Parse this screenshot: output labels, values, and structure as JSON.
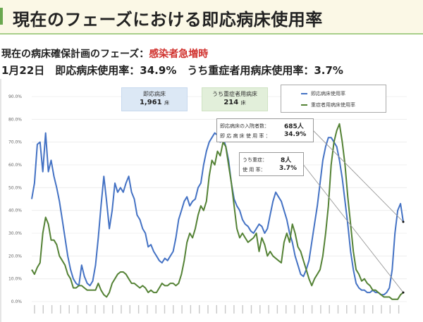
{
  "header": {
    "title": "現在のフェーズにおける即応病床使用率"
  },
  "phase": {
    "label": "現在の病床確保計画のフェーズ：",
    "value": "感染者急増時"
  },
  "rates": {
    "text": "1月22日　即応病床使用率：34.9%　うち重症者用病床使用率：3.7%"
  },
  "info_boxes": {
    "beds": {
      "title": "即応病床",
      "value": "1,961",
      "unit": "床"
    },
    "severe_beds": {
      "title": "うち重症者用病床",
      "value": "214",
      "unit": "床"
    }
  },
  "callouts": {
    "main": {
      "row1_label": "即応病床の入院者数：",
      "row1_value": "685人",
      "row2_label": "即 応 病 床 使 用 率 ：",
      "row2_value": "34.9%"
    },
    "severe": {
      "row1_label": "うち重症：",
      "row1_value": "8人",
      "row2_label": "使 用 率：",
      "row2_value": "3.7%"
    }
  },
  "colors": {
    "blue": "#4472c4",
    "green": "#548235",
    "accent_red": "#d0312d"
  },
  "chart_data": {
    "type": "line",
    "title": "",
    "xlabel": "",
    "ylabel": "",
    "ylim": [
      0,
      90
    ],
    "y_ticks": [
      "0.0%",
      "10.0%",
      "20.0%",
      "30.0%",
      "40.0%",
      "50.0%",
      "60.0%",
      "70.0%",
      "80.0%",
      "90.0%"
    ],
    "grid": true,
    "legend": {
      "position": "top-right",
      "entries": [
        "即応病床使用率",
        "重症者用病床使用率"
      ]
    },
    "x_note": "date ticks (rotated, unreadable)",
    "series": [
      {
        "name": "即応病床使用率",
        "color": "#4472c4",
        "values": [
          45,
          52,
          69,
          70,
          57,
          74,
          57,
          62,
          55,
          50,
          44,
          36,
          28,
          20,
          14,
          10,
          8,
          7,
          16,
          11,
          8,
          7,
          9,
          16,
          28,
          42,
          55,
          44,
          32,
          40,
          52,
          48,
          50,
          48,
          52,
          55,
          48,
          45,
          38,
          36,
          32,
          30,
          24,
          25,
          22,
          20,
          18,
          17,
          19,
          18,
          20,
          22,
          28,
          36,
          40,
          44,
          46,
          42,
          44,
          45,
          50,
          52,
          60,
          66,
          70,
          72,
          74,
          73,
          70,
          72,
          68,
          62,
          52,
          45,
          42,
          40,
          36,
          34,
          33,
          31,
          30,
          32,
          34,
          33,
          30,
          32,
          38,
          44,
          48,
          46,
          44,
          40,
          36,
          30,
          26,
          20,
          16,
          12,
          11,
          14,
          18,
          26,
          34,
          42,
          52,
          62,
          68,
          72,
          72,
          70,
          68,
          62,
          54,
          44,
          34,
          22,
          14,
          8,
          6,
          5,
          5,
          4,
          4,
          5,
          4,
          4,
          3,
          3,
          4,
          6,
          14,
          30,
          40,
          43,
          35
        ]
      },
      {
        "name": "重症者用病床使用率",
        "color": "#548235",
        "values": [
          14,
          12,
          15,
          17,
          30,
          37,
          34,
          27,
          27,
          25,
          20,
          18,
          16,
          12,
          10,
          6,
          6,
          7,
          7,
          6,
          5,
          5,
          5,
          5,
          8,
          5,
          3,
          2,
          4,
          8,
          10,
          12,
          13,
          13,
          12,
          10,
          8,
          8,
          7,
          6,
          7,
          6,
          4,
          5,
          4,
          4,
          6,
          8,
          7,
          7,
          8,
          8,
          7,
          8,
          12,
          18,
          26,
          30,
          28,
          32,
          38,
          42,
          40,
          44,
          55,
          62,
          60,
          66,
          64,
          70,
          68,
          60,
          52,
          42,
          32,
          28,
          30,
          28,
          26,
          27,
          28,
          30,
          22,
          28,
          25,
          20,
          22,
          20,
          19,
          18,
          17,
          26,
          30,
          26,
          34,
          30,
          24,
          22,
          18,
          14,
          10,
          7,
          10,
          12,
          14,
          20,
          30,
          42,
          60,
          70,
          75,
          78,
          70,
          60,
          46,
          34,
          22,
          14,
          12,
          9,
          10,
          8,
          7,
          5,
          5,
          4,
          3,
          2,
          2,
          2,
          1,
          1,
          1,
          3,
          4
        ]
      }
    ]
  }
}
